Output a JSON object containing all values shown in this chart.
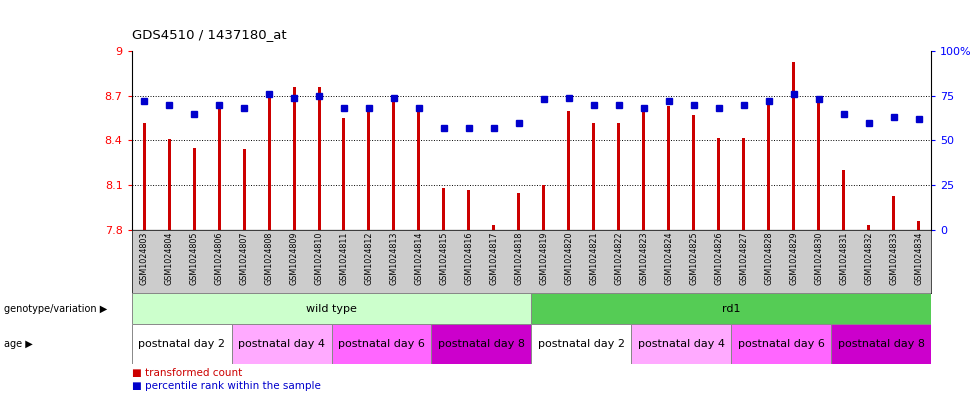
{
  "title": "GDS4510 / 1437180_at",
  "samples": [
    "GSM1024803",
    "GSM1024804",
    "GSM1024805",
    "GSM1024806",
    "GSM1024807",
    "GSM1024808",
    "GSM1024809",
    "GSM1024810",
    "GSM1024811",
    "GSM1024812",
    "GSM1024813",
    "GSM1024814",
    "GSM1024815",
    "GSM1024816",
    "GSM1024817",
    "GSM1024818",
    "GSM1024819",
    "GSM1024820",
    "GSM1024821",
    "GSM1024822",
    "GSM1024823",
    "GSM1024824",
    "GSM1024825",
    "GSM1024826",
    "GSM1024827",
    "GSM1024828",
    "GSM1024829",
    "GSM1024830",
    "GSM1024831",
    "GSM1024832",
    "GSM1024833",
    "GSM1024834"
  ],
  "bar_values": [
    8.52,
    8.41,
    8.35,
    8.63,
    8.34,
    8.72,
    8.76,
    8.76,
    8.55,
    8.62,
    8.7,
    8.63,
    8.08,
    8.07,
    7.83,
    8.05,
    8.1,
    8.6,
    8.52,
    8.52,
    8.6,
    8.63,
    8.57,
    8.42,
    8.42,
    8.68,
    8.93,
    8.7,
    8.2,
    7.83,
    8.03,
    7.86
  ],
  "percentile_values": [
    72,
    70,
    65,
    70,
    68,
    76,
    74,
    75,
    68,
    68,
    74,
    68,
    57,
    57,
    57,
    60,
    73,
    74,
    70,
    70,
    68,
    72,
    70,
    68,
    70,
    72,
    76,
    73,
    65,
    60,
    63,
    62
  ],
  "bar_color": "#cc0000",
  "dot_color": "#0000cc",
  "ylim_left": [
    7.8,
    9.0
  ],
  "ylim_right": [
    0,
    100
  ],
  "yticks_left": [
    7.8,
    8.1,
    8.4,
    8.7,
    9.0
  ],
  "ytick_labels_left": [
    "7.8",
    "8.1",
    "8.4",
    "8.7",
    "9"
  ],
  "yticks_right": [
    0,
    25,
    50,
    75,
    100
  ],
  "ytick_labels_right": [
    "0",
    "25",
    "50",
    "75",
    "100%"
  ],
  "hgrid_vals": [
    8.1,
    8.4,
    8.7
  ],
  "genotype_groups": [
    {
      "label": "wild type",
      "start": 0,
      "end": 16,
      "color": "#ccffcc"
    },
    {
      "label": "rd1",
      "start": 16,
      "end": 32,
      "color": "#55cc55"
    }
  ],
  "age_groups": [
    {
      "label": "postnatal day 2",
      "start": 0,
      "end": 4,
      "color": "#ffffff"
    },
    {
      "label": "postnatal day 4",
      "start": 4,
      "end": 8,
      "color": "#ffaaff"
    },
    {
      "label": "postnatal day 6",
      "start": 8,
      "end": 12,
      "color": "#ff66ff"
    },
    {
      "label": "postnatal day 8",
      "start": 12,
      "end": 16,
      "color": "#cc00cc"
    },
    {
      "label": "postnatal day 2",
      "start": 16,
      "end": 20,
      "color": "#ffffff"
    },
    {
      "label": "postnatal day 4",
      "start": 20,
      "end": 24,
      "color": "#ffaaff"
    },
    {
      "label": "postnatal day 6",
      "start": 24,
      "end": 28,
      "color": "#ff66ff"
    },
    {
      "label": "postnatal day 8",
      "start": 28,
      "end": 32,
      "color": "#cc00cc"
    }
  ],
  "xtick_bg": "#cccccc",
  "bar_width": 0.12,
  "dot_size": 4.5,
  "title_fontsize": 9.5,
  "axis_fontsize": 8,
  "sample_fontsize": 5.8,
  "label_fontsize": 8,
  "legend_fontsize": 7.5
}
